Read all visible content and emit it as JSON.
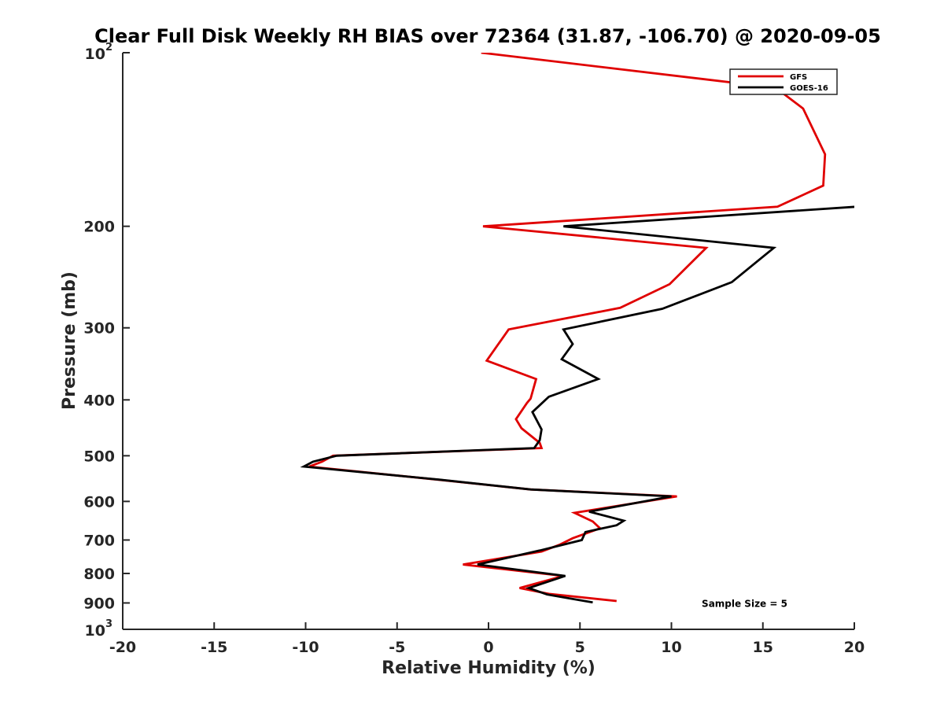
{
  "chart_data": {
    "type": "line",
    "title": "Clear Full Disk Weekly RH BIAS over 72364 (31.87, -106.70) @ 2020-09-05",
    "xlabel": "Relative Humidity (%)",
    "ylabel": "Pressure (mb)",
    "xlim": [
      -20,
      20
    ],
    "ylim": [
      100,
      1000
    ],
    "y_scale": "log",
    "y_reversed": true,
    "grid": false,
    "legend_position": "top-right",
    "x_ticks": [
      "-20",
      "-15",
      "-10",
      "-5",
      "0",
      "5",
      "10",
      "15",
      "20"
    ],
    "y_ticks": [
      {
        "value": 100,
        "base": "10",
        "exp": "2"
      },
      {
        "value": 200,
        "label": "200"
      },
      {
        "value": 300,
        "label": "300"
      },
      {
        "value": 400,
        "label": "400"
      },
      {
        "value": 500,
        "label": "500"
      },
      {
        "value": 600,
        "label": "600"
      },
      {
        "value": 700,
        "label": "700"
      },
      {
        "value": 800,
        "label": "800"
      },
      {
        "value": 900,
        "label": "900"
      },
      {
        "value": 1000,
        "base": "10",
        "exp": "3"
      }
    ],
    "series": [
      {
        "name": "GFS",
        "color": "#e00000",
        "points": [
          [
            -0.4,
            100
          ],
          [
            15.7,
            115
          ],
          [
            17.2,
            125
          ],
          [
            18.4,
            150
          ],
          [
            18.3,
            170
          ],
          [
            15.8,
            185
          ],
          [
            -0.3,
            200
          ],
          [
            11.9,
            218
          ],
          [
            9.9,
            252
          ],
          [
            7.2,
            277
          ],
          [
            1.1,
            302
          ],
          [
            -0.1,
            342
          ],
          [
            2.6,
            368
          ],
          [
            2.3,
            398
          ],
          [
            2.1,
            405
          ],
          [
            1.5,
            432
          ],
          [
            1.8,
            448
          ],
          [
            2.8,
            475
          ],
          [
            2.9,
            485
          ],
          [
            -8.5,
            500
          ],
          [
            -9.1,
            512
          ],
          [
            -9.8,
            522
          ],
          [
            -2.8,
            550
          ],
          [
            2.3,
            572
          ],
          [
            10.3,
            588
          ],
          [
            4.7,
            628
          ],
          [
            5.7,
            650
          ],
          [
            6.1,
            668
          ],
          [
            4.6,
            695
          ],
          [
            3.9,
            713
          ],
          [
            2.9,
            733
          ],
          [
            -1.4,
            772
          ],
          [
            4.1,
            808
          ],
          [
            1.7,
            848
          ],
          [
            3.3,
            868
          ],
          [
            7.0,
            893
          ]
        ]
      },
      {
        "name": "GOES-16",
        "color": "#000000",
        "points": [
          [
            20.1,
            185
          ],
          [
            4.1,
            200
          ],
          [
            15.6,
            218
          ],
          [
            14.7,
            230
          ],
          [
            13.3,
            250
          ],
          [
            9.5,
            278
          ],
          [
            4.1,
            302
          ],
          [
            4.6,
            320
          ],
          [
            4.0,
            340
          ],
          [
            6.0,
            368
          ],
          [
            3.3,
            395
          ],
          [
            2.4,
            420
          ],
          [
            2.9,
            450
          ],
          [
            2.8,
            470
          ],
          [
            2.5,
            485
          ],
          [
            -8.3,
            500
          ],
          [
            -9.6,
            512
          ],
          [
            -10.1,
            522
          ],
          [
            -2.7,
            550
          ],
          [
            2.3,
            572
          ],
          [
            10.0,
            588
          ],
          [
            5.5,
            625
          ],
          [
            7.4,
            648
          ],
          [
            7.0,
            660
          ],
          [
            5.3,
            678
          ],
          [
            5.1,
            700
          ],
          [
            2.8,
            730
          ],
          [
            -0.6,
            772
          ],
          [
            4.2,
            808
          ],
          [
            2.2,
            848
          ],
          [
            3.2,
            870
          ],
          [
            5.7,
            898
          ]
        ]
      }
    ],
    "annotations": [
      {
        "text": "Sample Size = 5",
        "x": 14.0,
        "y": 900
      }
    ]
  }
}
